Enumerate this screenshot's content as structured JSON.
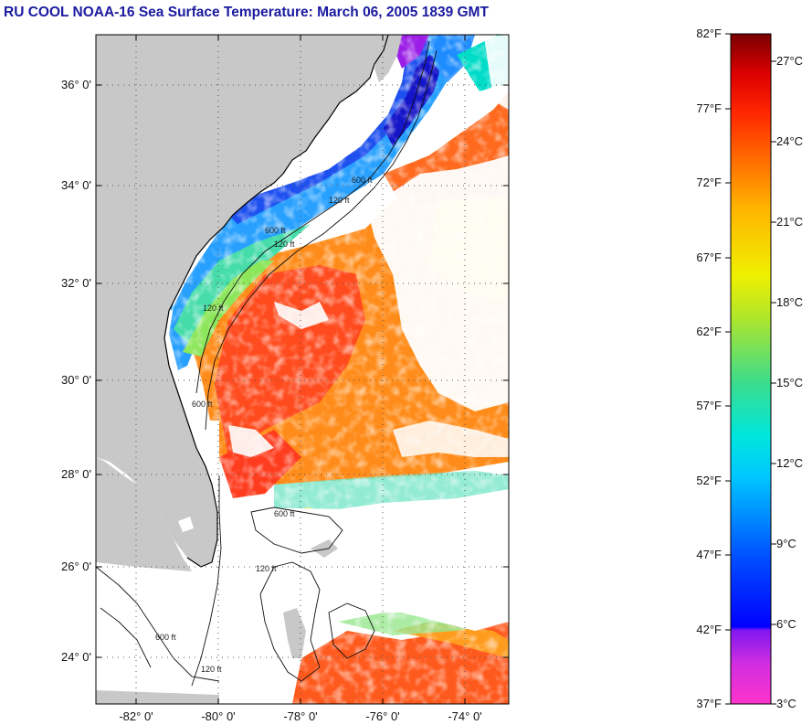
{
  "title": "RU COOL  NOAA-16  Sea Surface Temperature:  March 06, 2005 1839 GMT",
  "map": {
    "lon_range": [
      -83,
      -73
    ],
    "lat_range": [
      23,
      37
    ],
    "lat_ticks": [
      {
        "value": 36,
        "label": "36° 0'"
      },
      {
        "value": 34,
        "label": "34° 0'"
      },
      {
        "value": 32,
        "label": "32° 0'"
      },
      {
        "value": 30,
        "label": "30° 0'"
      },
      {
        "value": 28,
        "label": "28° 0'"
      },
      {
        "value": 26,
        "label": "26° 0'"
      },
      {
        "value": 24,
        "label": "24° 0'"
      }
    ],
    "lon_ticks": [
      {
        "value": -82,
        "label": "-82° 0'"
      },
      {
        "value": -80,
        "label": "-80° 0'"
      },
      {
        "value": -78,
        "label": "-78° 0'"
      },
      {
        "value": -76,
        "label": "-76° 0'"
      },
      {
        "value": -74,
        "label": "-74° 0'"
      }
    ],
    "grid": "dotted",
    "land_color": "#c8c8c8",
    "cloud_color": "#ffffff",
    "contour_labels": [
      "120 ft",
      "600 ft",
      "120 ft",
      "600 ft",
      "120 ft",
      "600 ft",
      "600 ft",
      "120 ft",
      "600 ft",
      "120 ft"
    ]
  },
  "colorbar": {
    "fahrenheit_labels": [
      "82°F",
      "77°F",
      "72°F",
      "67°F",
      "62°F",
      "57°F",
      "52°F",
      "47°F",
      "42°F",
      "37°F"
    ],
    "celsius_labels": [
      "27°C",
      "24°C",
      "21°C",
      "18°C",
      "15°C",
      "12°C",
      "9°C",
      "6°C",
      "3°C"
    ],
    "colors": [
      "#ff33cc",
      "#b41ee6",
      "#7a18ee",
      "#0000ff",
      "#0050ff",
      "#00b4ff",
      "#00e6dc",
      "#3cdc8c",
      "#b4e628",
      "#f0f000",
      "#ffb400",
      "#ff7800",
      "#ff2800",
      "#dc0000",
      "#780000"
    ]
  }
}
